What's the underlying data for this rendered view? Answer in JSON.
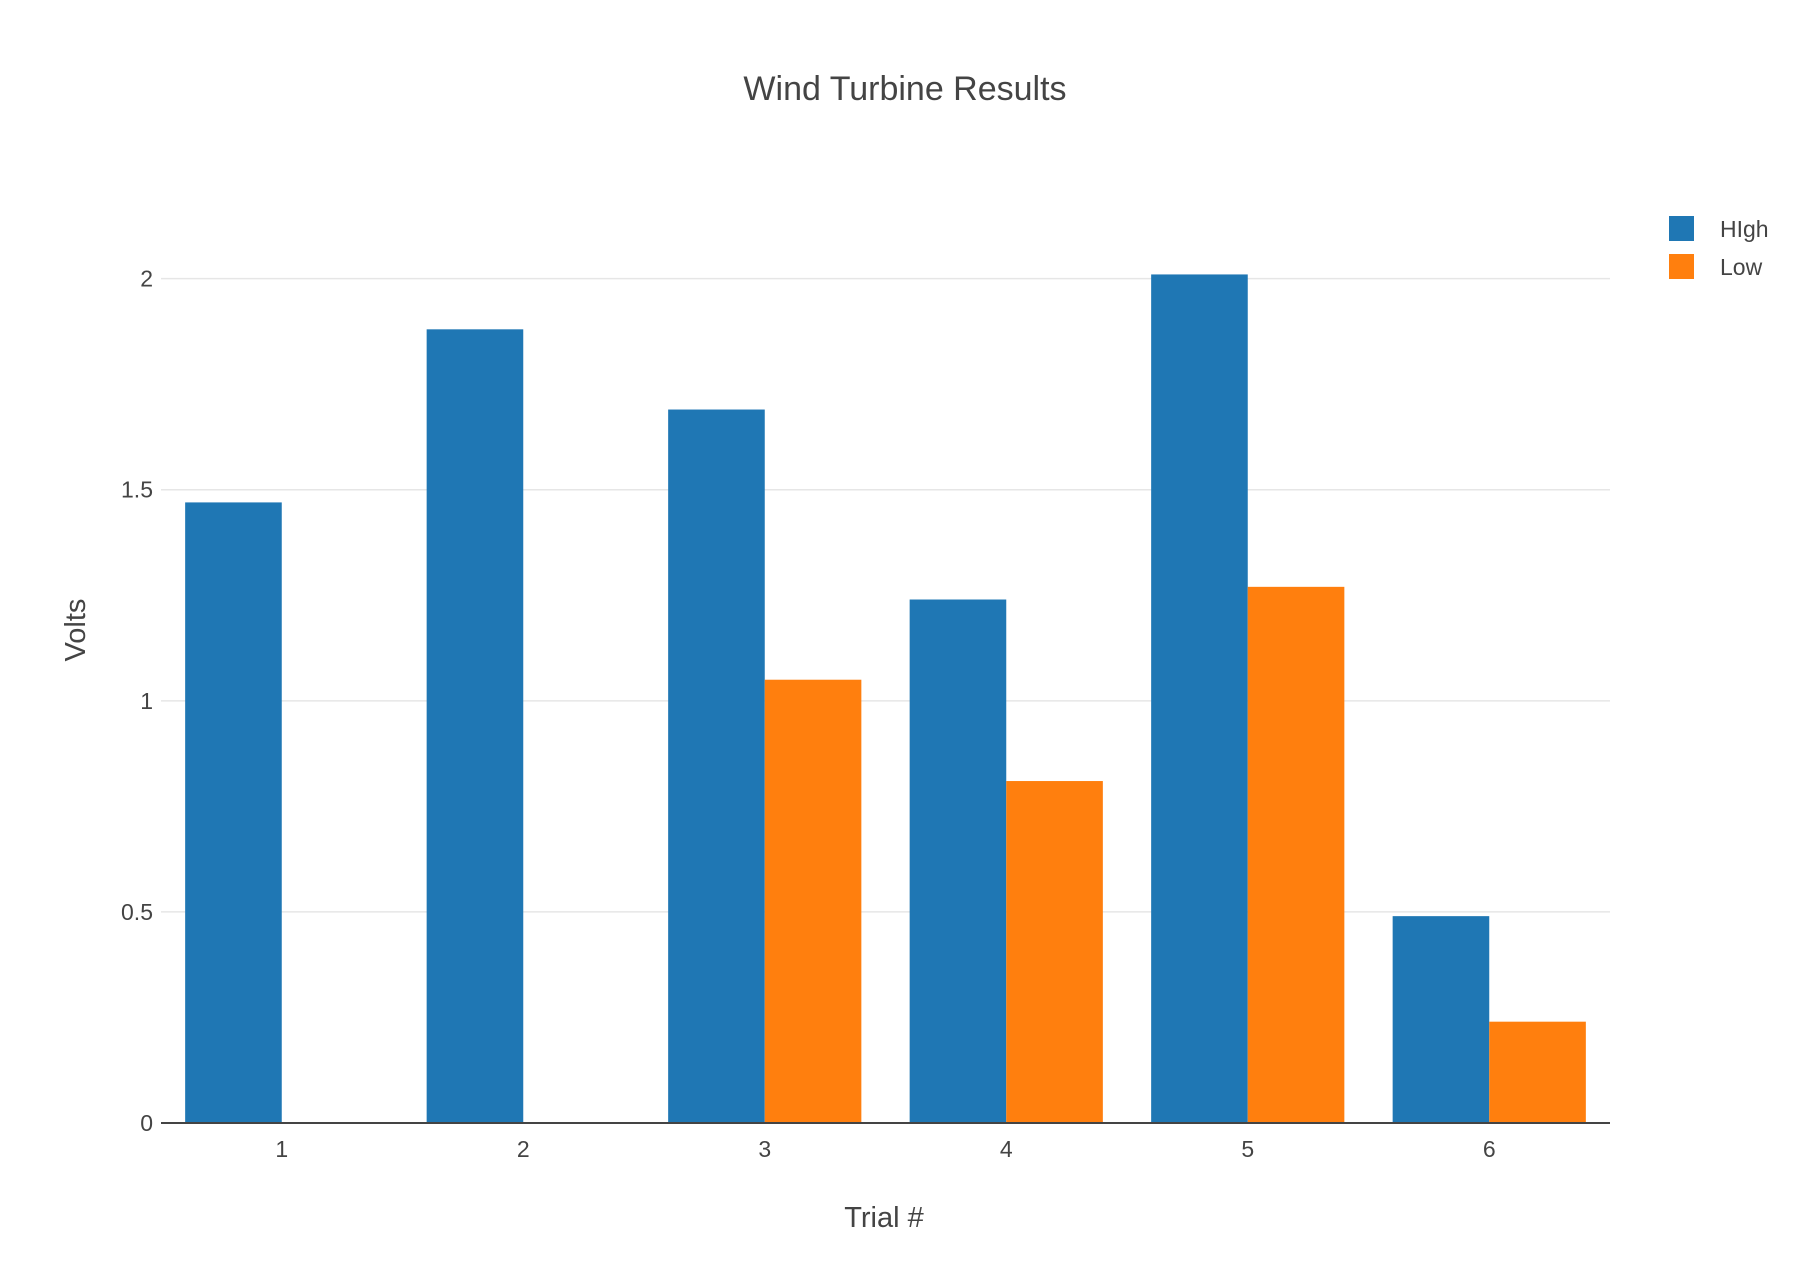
{
  "chart_data": {
    "type": "bar",
    "title": "Wind Turbine Results",
    "xlabel": "Trial #",
    "ylabel": "Volts",
    "categories": [
      "1",
      "2",
      "3",
      "4",
      "5",
      "6"
    ],
    "series": [
      {
        "name": "HIgh",
        "color": "#1f77b4",
        "values": [
          1.47,
          1.88,
          1.69,
          1.24,
          2.01,
          0.49
        ]
      },
      {
        "name": "Low",
        "color": "#ff7f0e",
        "values": [
          null,
          null,
          1.05,
          0.81,
          1.27,
          0.24
        ]
      }
    ],
    "ylim": [
      0,
      2.12
    ],
    "yticks": [
      0,
      0.5,
      1,
      1.5,
      2
    ],
    "ytick_labels": [
      "0",
      "0.5",
      "1",
      "1.5",
      "2"
    ],
    "grid": true,
    "legend_position": "top-right"
  }
}
